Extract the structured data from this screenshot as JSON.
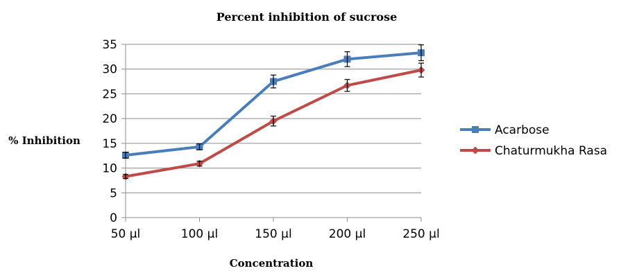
{
  "chart_data": {
    "type": "line",
    "title": "Percent inhibition of sucrose",
    "xlabel": "Concentration",
    "ylabel": "% Inhibition",
    "categories": [
      "50 µl",
      "100 µl",
      "150 µl",
      "200 µl",
      "250 µl"
    ],
    "ylim": [
      0,
      35
    ],
    "yticks": [
      0,
      5,
      10,
      15,
      20,
      25,
      30,
      35
    ],
    "grid": true,
    "legend_position": "right",
    "series": [
      {
        "name": "Acarbose",
        "color": "#4a7ebb",
        "marker": "square",
        "values": [
          12.6,
          14.3,
          27.5,
          32.0,
          33.3
        ],
        "error": [
          0.6,
          0.6,
          1.3,
          1.5,
          1.6
        ]
      },
      {
        "name": "Chaturmukha Rasa",
        "color": "#be4b48",
        "marker": "diamond",
        "values": [
          8.3,
          10.9,
          19.5,
          26.7,
          29.8
        ],
        "error": [
          0.4,
          0.5,
          1.0,
          1.2,
          1.4
        ]
      }
    ]
  }
}
